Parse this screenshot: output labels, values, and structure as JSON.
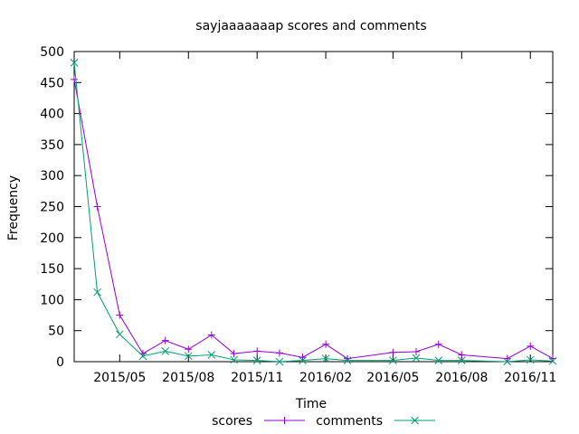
{
  "chart_data": {
    "type": "line",
    "title": "sayjaaaaaaap scores and comments",
    "xlabel": "Time",
    "ylabel": "Frequency",
    "x_ticks": [
      "2015/05",
      "2015/08",
      "2015/11",
      "2016/02",
      "2016/05",
      "2016/08",
      "2016/11"
    ],
    "ylim": [
      0,
      500
    ],
    "y_ticks": [
      0,
      50,
      100,
      150,
      200,
      250,
      300,
      350,
      400,
      450,
      500
    ],
    "xlim": [
      "2015-03-01",
      "2016-12-01"
    ],
    "legend": "bottom-center",
    "grid": false,
    "series": [
      {
        "name": "scores",
        "color": "#9400d3",
        "marker": "plus",
        "points": [
          [
            "2015-03-01",
            455
          ],
          [
            "2015-04-01",
            250
          ],
          [
            "2015-05-01",
            75
          ],
          [
            "2015-06-01",
            13
          ],
          [
            "2015-07-01",
            34
          ],
          [
            "2015-08-01",
            20
          ],
          [
            "2015-09-01",
            43
          ],
          [
            "2015-10-01",
            13
          ],
          [
            "2015-11-01",
            17
          ],
          [
            "2015-12-01",
            14
          ],
          [
            "2016-01-01",
            7
          ],
          [
            "2016-02-01",
            28
          ],
          [
            "2016-03-01",
            5
          ],
          [
            "2016-05-01",
            15
          ],
          [
            "2016-06-01",
            16
          ],
          [
            "2016-07-01",
            28
          ],
          [
            "2016-08-01",
            11
          ],
          [
            "2016-10-01",
            5
          ],
          [
            "2016-11-01",
            25
          ],
          [
            "2016-12-01",
            5
          ]
        ]
      },
      {
        "name": "comments",
        "color": "#009e73",
        "marker": "cross",
        "points": [
          [
            "2015-03-01",
            482
          ],
          [
            "2015-04-01",
            112
          ],
          [
            "2015-05-01",
            44
          ],
          [
            "2015-06-01",
            9
          ],
          [
            "2015-07-01",
            17
          ],
          [
            "2015-08-01",
            9
          ],
          [
            "2015-09-01",
            11
          ],
          [
            "2015-10-01",
            3
          ],
          [
            "2015-11-01",
            2
          ],
          [
            "2015-12-01",
            0
          ],
          [
            "2016-01-01",
            2
          ],
          [
            "2016-02-01",
            5
          ],
          [
            "2016-03-01",
            2
          ],
          [
            "2016-05-01",
            2
          ],
          [
            "2016-06-01",
            6
          ],
          [
            "2016-07-01",
            2
          ],
          [
            "2016-08-01",
            2
          ],
          [
            "2016-10-01",
            0
          ],
          [
            "2016-11-01",
            3
          ],
          [
            "2016-12-01",
            1
          ]
        ]
      }
    ]
  }
}
